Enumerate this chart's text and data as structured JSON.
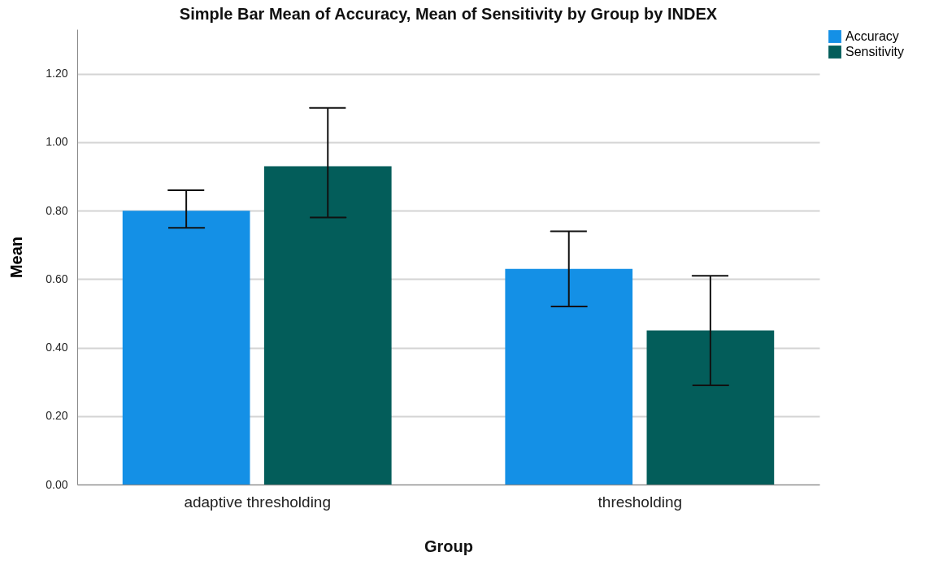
{
  "chart_data": {
    "type": "bar",
    "title": "Simple Bar Mean of Accuracy, Mean of Sensitivity by Group by INDEX",
    "xlabel": "Group",
    "ylabel": "Mean",
    "categories": [
      "adaptive thresholding",
      "thresholding"
    ],
    "series": [
      {
        "name": "Accuracy",
        "color": "#1490e6",
        "values": [
          0.8,
          0.63
        ],
        "errors": [
          [
            0.75,
            0.86
          ],
          [
            0.52,
            0.74
          ]
        ]
      },
      {
        "name": "Sensitivity",
        "color": "#035d5a",
        "values": [
          0.93,
          0.45
        ],
        "errors": [
          [
            0.78,
            1.1
          ],
          [
            0.29,
            0.61
          ]
        ]
      }
    ],
    "ylim": [
      0,
      1.33
    ],
    "yticks": [
      {
        "value": 0,
        "label": "0.00"
      },
      {
        "value": 0.2,
        "label": "0.20"
      },
      {
        "value": 0.4,
        "label": "0.40"
      },
      {
        "value": 0.6,
        "label": "0.60"
      },
      {
        "value": 0.8,
        "label": "0.80"
      },
      {
        "value": 1.0,
        "label": "1.00"
      },
      {
        "value": 1.2,
        "label": "1.20"
      }
    ],
    "grid": "y",
    "legend": "top right"
  }
}
